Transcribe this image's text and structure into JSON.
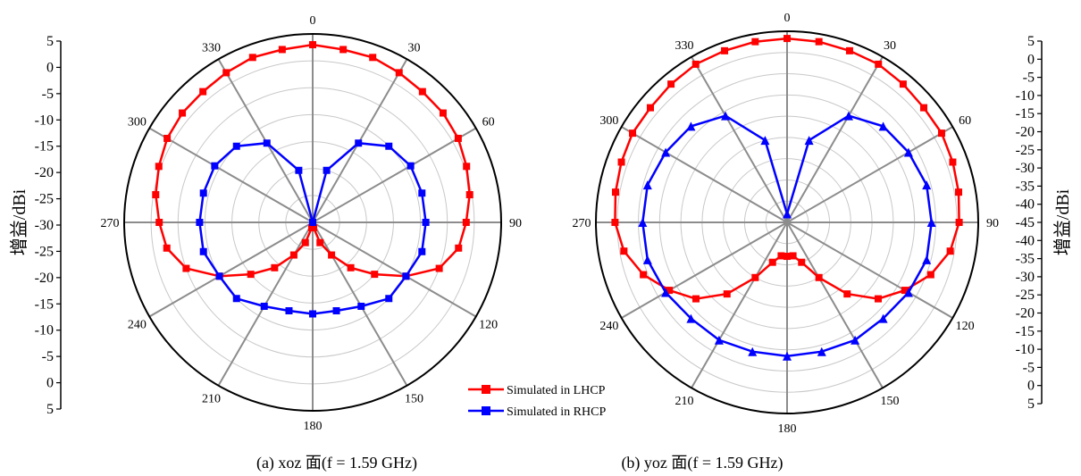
{
  "figure": {
    "legend": {
      "lhcp_label": "Simulated in LHCP",
      "rhcp_label": "Simulated in RHCP"
    },
    "colors": {
      "lhcp": "#ff0000",
      "rhcp": "#0000ff",
      "spoke": "#8c8c8c",
      "ring": "#c8c8c8"
    }
  },
  "chart_data": [
    {
      "type": "polar-line",
      "caption": "(a) xoz 面(f = 1.59 GHz)",
      "ylabel": "增益/dBi",
      "r_range": [
        -30,
        5
      ],
      "r_ticks": [
        "5",
        "0",
        "-5",
        "-10",
        "-15",
        "-20",
        "-25",
        "-30",
        "-25",
        "-20",
        "-15",
        "-10",
        "-5",
        "0",
        "5"
      ],
      "angle_labels": [
        "0",
        "30",
        "60",
        "90",
        "120",
        "150",
        "180",
        "210",
        "240",
        "270",
        "300",
        "330"
      ],
      "marker": "square",
      "legend_position": "bottom-right",
      "series": [
        {
          "name": "Simulated in LHCP",
          "angles": [
            0,
            10,
            20,
            30,
            40,
            50,
            60,
            70,
            80,
            90,
            100,
            110,
            120,
            130,
            140,
            150,
            160,
            170,
            180,
            190,
            200,
            210,
            220,
            230,
            240,
            250,
            260,
            270,
            280,
            290,
            300,
            310,
            320,
            330,
            340,
            350
          ],
          "values": [
            3,
            2.6,
            2.6,
            2.1,
            1.7,
            1.6,
            1.2,
            0.4,
            -0.4,
            -1.5,
            -2.5,
            -5,
            -10,
            -15,
            -19,
            -23,
            -26,
            -29,
            -30,
            -29,
            -26,
            -23,
            -19,
            -15,
            -10,
            -5,
            -2.5,
            -1.5,
            -0.4,
            0.4,
            1.2,
            1.6,
            1.7,
            2.1,
            2.6,
            2.6
          ]
        },
        {
          "name": "Simulated in RHCP",
          "angles": [
            0,
            15,
            30,
            45,
            60,
            75,
            90,
            105,
            120,
            135,
            150,
            165,
            180,
            195,
            210,
            225,
            240,
            255,
            270,
            285,
            300,
            315,
            330,
            345
          ],
          "values": [
            -30,
            -20,
            -13,
            -10,
            -9,
            -9,
            -9,
            -9,
            -10,
            -10,
            -12,
            -13,
            -13,
            -13,
            -12,
            -10,
            -10,
            -9,
            -9,
            -9,
            -9,
            -10,
            -13,
            -20
          ]
        }
      ]
    },
    {
      "type": "polar-line",
      "caption": "(b) yoz 面(f = 1.59 GHz)",
      "ylabel": "增益/dBi",
      "r_range": [
        -40,
        5
      ],
      "r_ticks": [
        "5",
        "0",
        "-5",
        "-10",
        "-15",
        "-20",
        "-25",
        "-30",
        "-35",
        "-40",
        "-45",
        "-40",
        "-35",
        "-30",
        "-25",
        "-20",
        "-15",
        "-10",
        "-5",
        "0",
        "5"
      ],
      "angle_labels": [
        "0",
        "30",
        "60",
        "90",
        "120",
        "150",
        "180",
        "210",
        "240",
        "270",
        "300",
        "330"
      ],
      "marker": "square/triangle",
      "series": [
        {
          "name": "Simulated in LHCP",
          "angles": [
            0,
            10,
            20,
            30,
            40,
            50,
            60,
            70,
            80,
            90,
            100,
            110,
            120,
            130,
            140,
            150,
            160,
            170,
            180,
            190,
            200,
            210,
            220,
            230,
            240,
            250,
            260,
            270,
            280,
            290,
            300,
            310,
            320,
            330,
            340,
            350
          ],
          "values": [
            3.3,
            3.2,
            3,
            3,
            2.5,
            2,
            2,
            1.5,
            1,
            0.5,
            -1,
            -4,
            -8,
            -12,
            -18,
            -25,
            -30,
            -32,
            -32,
            -32,
            -30,
            -25,
            -18,
            -12,
            -8,
            -4,
            -1,
            0.5,
            1,
            1.5,
            2,
            2,
            2.5,
            3,
            3,
            3.2
          ]
        },
        {
          "name": "Simulated in RHCP",
          "angles": [
            0,
            15,
            30,
            45,
            60,
            75,
            90,
            105,
            120,
            135,
            150,
            165,
            180,
            195,
            210,
            225,
            240,
            255,
            270,
            285,
            300,
            315,
            330,
            345
          ],
          "values": [
            -38,
            -20,
            -11,
            -8,
            -7,
            -6,
            -6,
            -6,
            -7,
            -8,
            -8,
            -8.5,
            -8.5,
            -8.5,
            -8,
            -8,
            -7,
            -6,
            -6,
            -6,
            -7,
            -8,
            -11,
            -20
          ]
        }
      ]
    }
  ]
}
